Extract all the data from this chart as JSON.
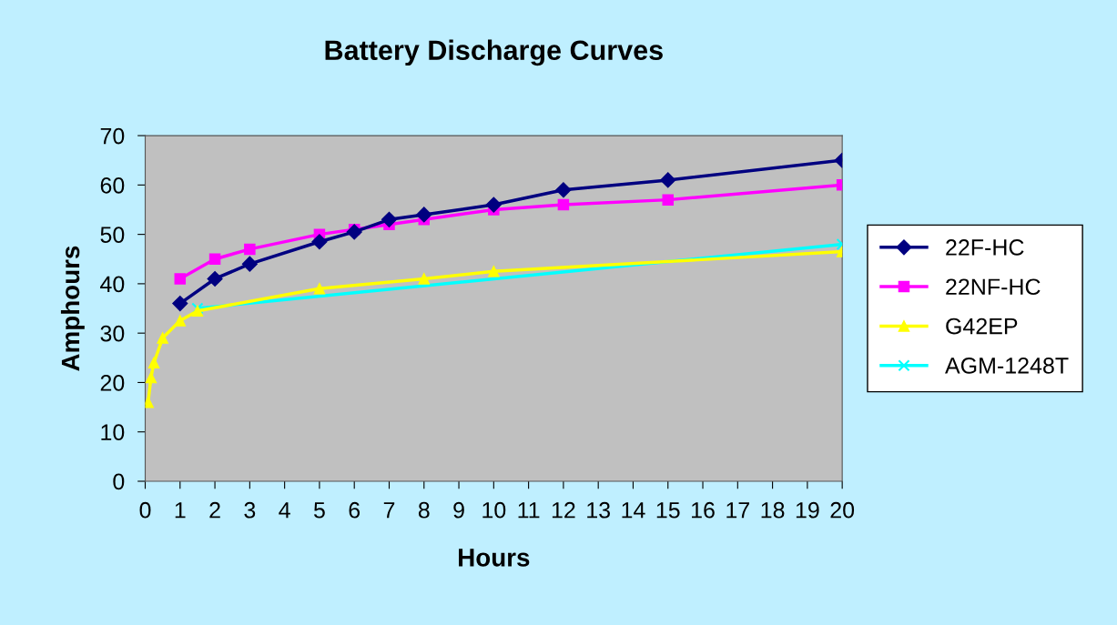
{
  "chart_data": {
    "type": "line",
    "title": "Battery Discharge Curves",
    "xlabel": "Hours",
    "ylabel": "Amphours",
    "xlim": [
      0,
      20
    ],
    "xticks": [
      0,
      1,
      2,
      3,
      4,
      5,
      6,
      7,
      8,
      9,
      10,
      11,
      12,
      13,
      14,
      15,
      16,
      17,
      18,
      19,
      20
    ],
    "ylim": [
      0,
      70
    ],
    "yticks": [
      0,
      10,
      20,
      30,
      40,
      50,
      60,
      70
    ],
    "grid": false,
    "legend": "right",
    "line_style": "solid",
    "series": [
      {
        "name": "22F-HC",
        "color": "#000080",
        "marker": "diamond",
        "x": [
          1,
          2,
          3,
          5,
          6,
          7,
          8,
          10,
          12,
          15,
          20
        ],
        "values": [
          36,
          41,
          44,
          48.5,
          50.5,
          53,
          54,
          56,
          59,
          61,
          65
        ]
      },
      {
        "name": "22NF-HC",
        "color": "#ff00ff",
        "marker": "square",
        "x": [
          1,
          2,
          3,
          5,
          6,
          7,
          8,
          10,
          12,
          15,
          20
        ],
        "values": [
          41,
          45,
          47,
          50,
          51,
          52,
          53,
          55,
          56,
          57,
          60
        ]
      },
      {
        "name": "G42EP",
        "color": "#ffff00",
        "marker": "triangle",
        "x": [
          0.083,
          0.167,
          0.25,
          0.5,
          1,
          1.5,
          5,
          8,
          10,
          20
        ],
        "values": [
          16,
          21,
          24,
          29,
          32.5,
          34.5,
          39,
          41,
          42.5,
          46.5
        ]
      },
      {
        "name": "AGM-1248T",
        "color": "#00ffff",
        "marker": "cross",
        "x": [
          1.5,
          20
        ],
        "values": [
          35,
          48
        ]
      }
    ]
  }
}
